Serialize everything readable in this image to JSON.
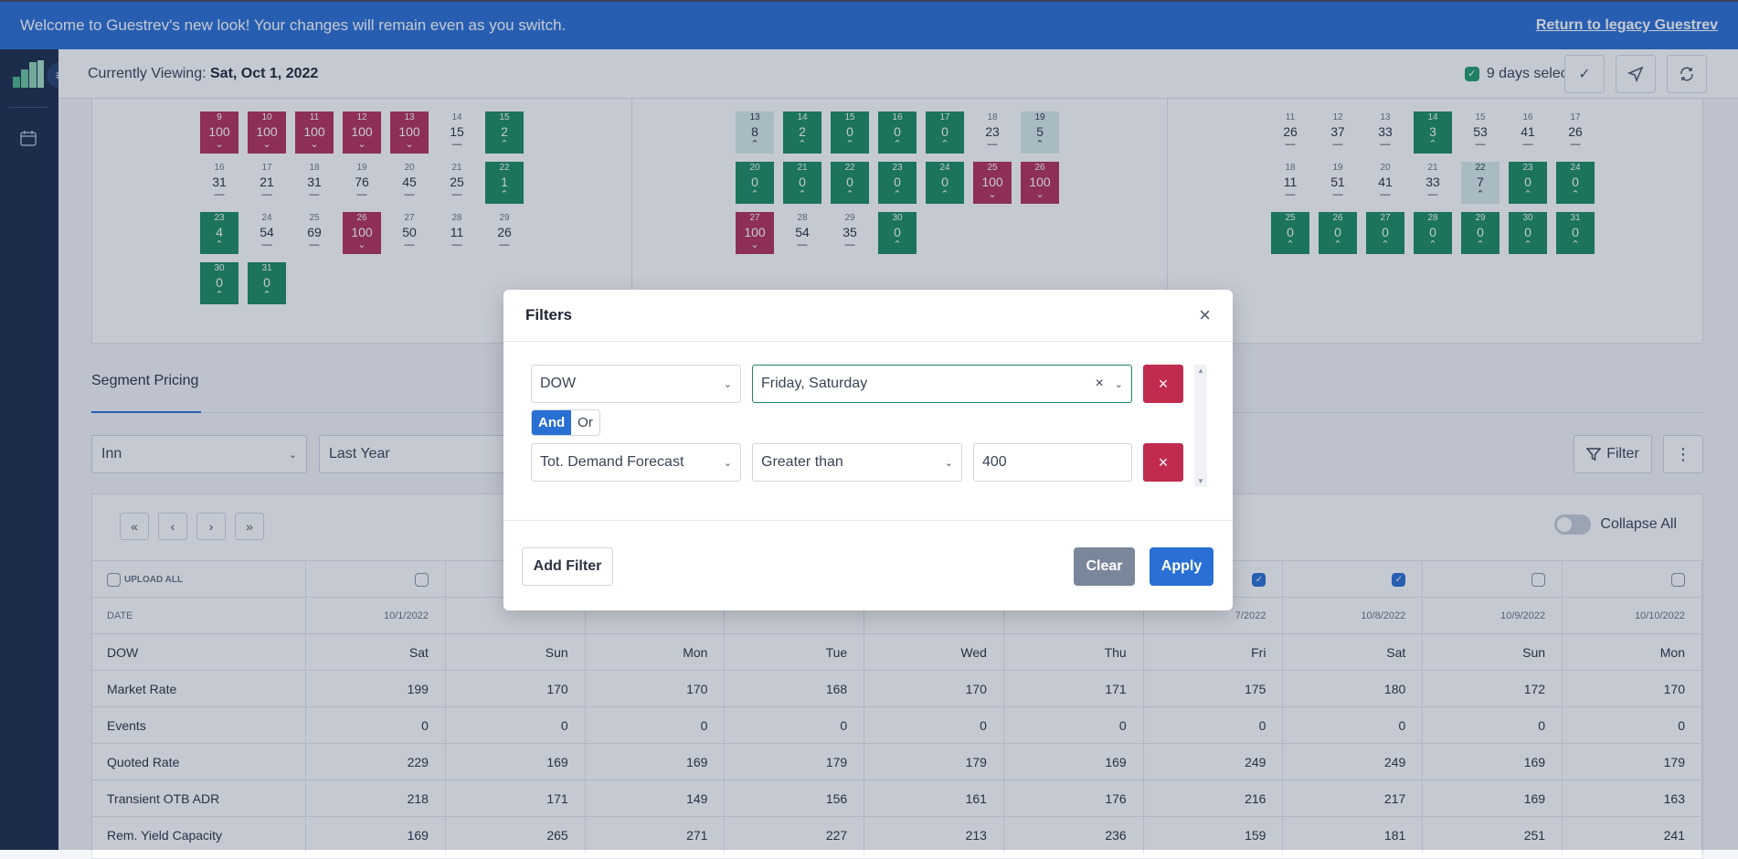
{
  "banner": {
    "message": "Welcome to Guestrev's new look! Your changes will remain even as you switch.",
    "legacy_link": "Return to legacy Guestrev"
  },
  "topbar": {
    "viewing_label": "Currently Viewing:",
    "viewing_date": "Sat, Oct 1, 2022",
    "days_selected": "9 days selected"
  },
  "calendar": {
    "col1": [
      {
        "d": "9",
        "v": "100",
        "t": "r"
      },
      {
        "d": "10",
        "v": "100",
        "t": "r"
      },
      {
        "d": "11",
        "v": "100",
        "t": "r"
      },
      {
        "d": "12",
        "v": "100",
        "t": "r"
      },
      {
        "d": "13",
        "v": "100",
        "t": "r"
      },
      {
        "d": "14",
        "v": "15",
        "t": "w"
      },
      {
        "d": "15",
        "v": "2",
        "t": "g"
      },
      {
        "d": "16",
        "v": "31",
        "t": "w"
      },
      {
        "d": "17",
        "v": "21",
        "t": "w"
      },
      {
        "d": "18",
        "v": "31",
        "t": "w"
      },
      {
        "d": "19",
        "v": "76",
        "t": "w"
      },
      {
        "d": "20",
        "v": "45",
        "t": "w"
      },
      {
        "d": "21",
        "v": "25",
        "t": "w"
      },
      {
        "d": "22",
        "v": "1",
        "t": "g"
      },
      {
        "d": "23",
        "v": "4",
        "t": "g"
      },
      {
        "d": "24",
        "v": "54",
        "t": "w"
      },
      {
        "d": "25",
        "v": "69",
        "t": "w"
      },
      {
        "d": "26",
        "v": "100",
        "t": "r"
      },
      {
        "d": "27",
        "v": "50",
        "t": "w"
      },
      {
        "d": "28",
        "v": "11",
        "t": "w"
      },
      {
        "d": "29",
        "v": "26",
        "t": "w"
      },
      {
        "d": "30",
        "v": "0",
        "t": "g"
      },
      {
        "d": "31",
        "v": "0",
        "t": "g"
      }
    ],
    "col2": [
      {
        "d": "13",
        "v": "8",
        "t": "l"
      },
      {
        "d": "14",
        "v": "2",
        "t": "g"
      },
      {
        "d": "15",
        "v": "0",
        "t": "g"
      },
      {
        "d": "16",
        "v": "0",
        "t": "g"
      },
      {
        "d": "17",
        "v": "0",
        "t": "g"
      },
      {
        "d": "18",
        "v": "23",
        "t": "w"
      },
      {
        "d": "19",
        "v": "5",
        "t": "l"
      },
      {
        "d": "20",
        "v": "0",
        "t": "g"
      },
      {
        "d": "21",
        "v": "0",
        "t": "g"
      },
      {
        "d": "22",
        "v": "0",
        "t": "g"
      },
      {
        "d": "23",
        "v": "0",
        "t": "g"
      },
      {
        "d": "24",
        "v": "0",
        "t": "g"
      },
      {
        "d": "25",
        "v": "100",
        "t": "r"
      },
      {
        "d": "26",
        "v": "100",
        "t": "r"
      },
      {
        "d": "27",
        "v": "100",
        "t": "r"
      },
      {
        "d": "28",
        "v": "54",
        "t": "w"
      },
      {
        "d": "29",
        "v": "35",
        "t": "w"
      },
      {
        "d": "30",
        "v": "0",
        "t": "g"
      }
    ],
    "col3": [
      {
        "d": "11",
        "v": "26",
        "t": "w"
      },
      {
        "d": "12",
        "v": "37",
        "t": "w"
      },
      {
        "d": "13",
        "v": "33",
        "t": "w"
      },
      {
        "d": "14",
        "v": "3",
        "t": "g"
      },
      {
        "d": "15",
        "v": "53",
        "t": "w"
      },
      {
        "d": "16",
        "v": "41",
        "t": "w"
      },
      {
        "d": "17",
        "v": "26",
        "t": "w"
      },
      {
        "d": "18",
        "v": "11",
        "t": "w"
      },
      {
        "d": "19",
        "v": "51",
        "t": "w"
      },
      {
        "d": "20",
        "v": "41",
        "t": "w"
      },
      {
        "d": "21",
        "v": "33",
        "t": "w"
      },
      {
        "d": "22",
        "v": "7",
        "t": "l"
      },
      {
        "d": "23",
        "v": "0",
        "t": "g"
      },
      {
        "d": "24",
        "v": "0",
        "t": "g"
      },
      {
        "d": "25",
        "v": "0",
        "t": "g"
      },
      {
        "d": "26",
        "v": "0",
        "t": "g"
      },
      {
        "d": "27",
        "v": "0",
        "t": "g"
      },
      {
        "d": "28",
        "v": "0",
        "t": "g"
      },
      {
        "d": "29",
        "v": "0",
        "t": "g"
      },
      {
        "d": "30",
        "v": "0",
        "t": "g"
      },
      {
        "d": "31",
        "v": "0",
        "t": "g"
      }
    ]
  },
  "segment": {
    "tab": "Segment Pricing",
    "property": "Inn",
    "compare": "Last Year",
    "filter_label": "Filter",
    "collapse_label": "Collapse All"
  },
  "table": {
    "upload_all": "UPLOAD ALL",
    "date_label": "DATE",
    "checks": [
      false,
      false,
      false,
      false,
      false,
      false,
      true,
      true,
      false,
      false
    ],
    "dates": [
      "10/1/2022",
      "",
      "",
      "",
      "",
      "",
      "7/2022",
      "10/8/2022",
      "10/9/2022",
      "10/10/2022"
    ],
    "rows": [
      {
        "label": "DOW",
        "values": [
          "Sat",
          "Sun",
          "Mon",
          "Tue",
          "Wed",
          "Thu",
          "Fri",
          "Sat",
          "Sun",
          "Mon"
        ]
      },
      {
        "label": "Market Rate",
        "values": [
          "199",
          "170",
          "170",
          "168",
          "170",
          "171",
          "175",
          "180",
          "172",
          "170"
        ]
      },
      {
        "label": "Events",
        "values": [
          "0",
          "0",
          "0",
          "0",
          "0",
          "0",
          "0",
          "0",
          "0",
          "0"
        ]
      },
      {
        "label": "Quoted Rate",
        "values": [
          "229",
          "169",
          "169",
          "179",
          "179",
          "169",
          "249",
          "249",
          "169",
          "179"
        ]
      },
      {
        "label": "Transient OTB ADR",
        "values": [
          "218",
          "171",
          "149",
          "156",
          "161",
          "176",
          "216",
          "217",
          "169",
          "163"
        ]
      },
      {
        "label": "Rem. Yield Capacity",
        "values": [
          "169",
          "265",
          "271",
          "227",
          "213",
          "236",
          "159",
          "181",
          "251",
          "241"
        ]
      }
    ]
  },
  "modal": {
    "title": "Filters",
    "filter1": {
      "field": "DOW",
      "value": "Friday, Saturday"
    },
    "and_label": "And",
    "or_label": "Or",
    "filter2": {
      "field": "Tot. Demand Forecast",
      "operator": "Greater than",
      "value": "400"
    },
    "add_filter": "Add Filter",
    "clear": "Clear",
    "apply": "Apply"
  }
}
